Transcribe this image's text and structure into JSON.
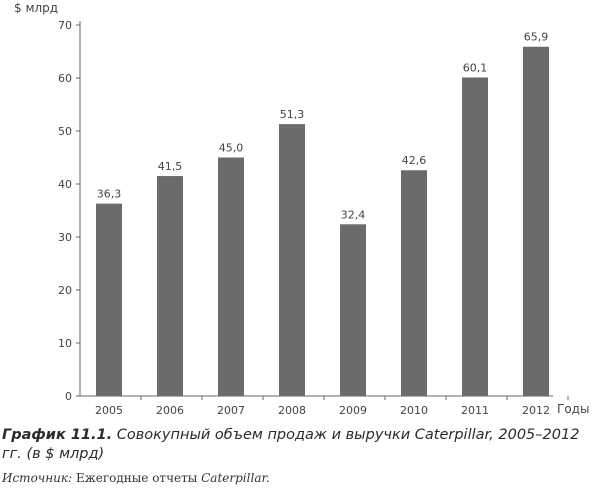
{
  "chart_data": {
    "type": "bar",
    "ylabel": "$ млрд",
    "xlabel": "Годы",
    "categories": [
      "2005",
      "2006",
      "2007",
      "2008",
      "2009",
      "2010",
      "2011",
      "2012"
    ],
    "values": [
      36.3,
      41.5,
      45.0,
      51.3,
      32.4,
      42.6,
      60.1,
      65.9
    ],
    "value_labels": [
      "36,3",
      "41,5",
      "45,0",
      "51,3",
      "32,4",
      "42,6",
      "60,1",
      "65,9"
    ],
    "ylim": [
      0,
      70
    ],
    "yticks": [
      "0",
      "10",
      "20",
      "30",
      "40",
      "50",
      "60",
      "70"
    ],
    "grid": false,
    "bar_color": "#6b6b6b"
  },
  "caption": {
    "label": "График 11.1.",
    "text": "Совокупный объем продаж и выручки Caterpillar, 2005–2012 гг. (в $ млрд)"
  },
  "source": {
    "label": "Источник:",
    "text": "Ежегодные отчеты",
    "brand": "Caterpillar."
  }
}
